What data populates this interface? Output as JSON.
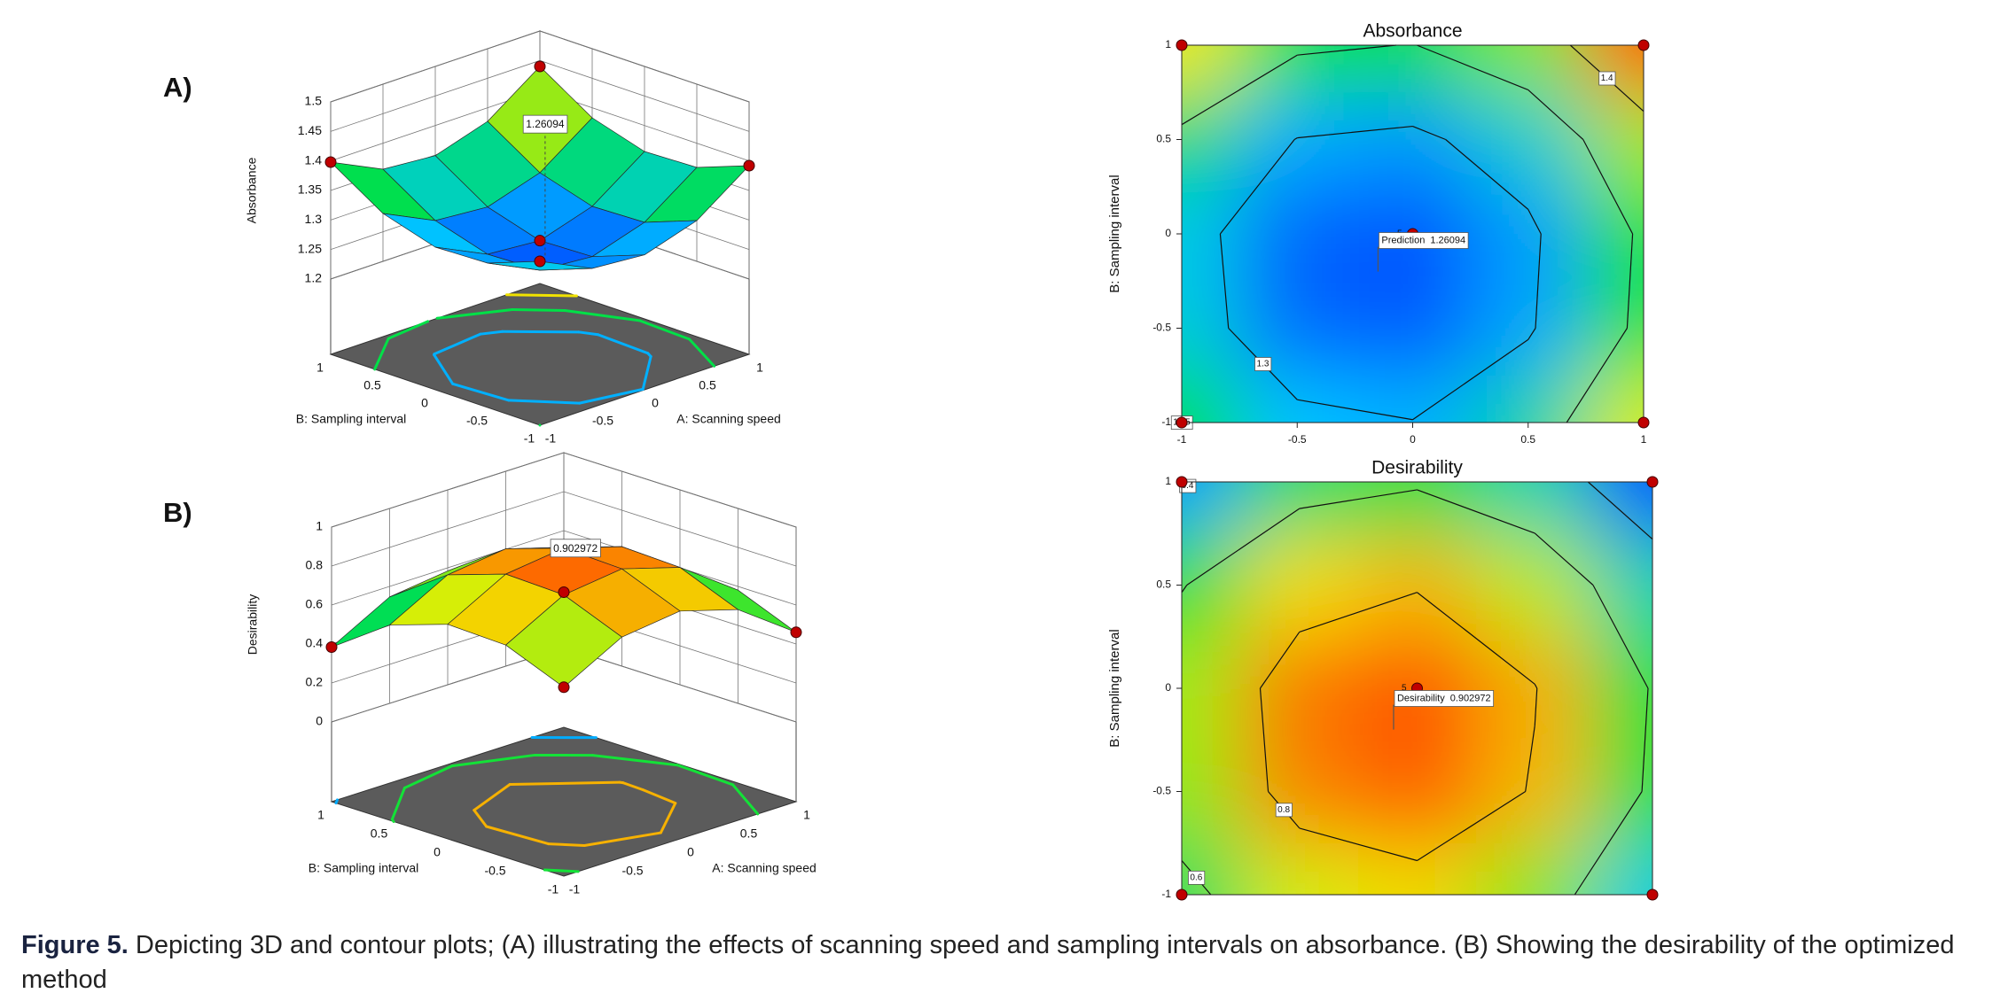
{
  "chart_data": [
    {
      "type": "surface3d",
      "panel_label": "A)",
      "xlabel": "A: Scanning speed",
      "ylabel": "B: Sampling interval",
      "zlabel": "Absorbance",
      "x": [
        -1,
        -0.5,
        0,
        0.5,
        1
      ],
      "y": [
        -1,
        -0.5,
        0,
        0.5,
        1
      ],
      "z": [
        [
          1.35,
          1.308,
          1.301,
          1.329,
          1.392
        ],
        [
          1.317,
          1.275,
          1.268,
          1.296,
          1.359
        ],
        [
          1.314,
          1.272,
          1.265,
          1.293,
          1.356
        ],
        [
          1.341,
          1.299,
          1.292,
          1.32,
          1.383
        ],
        [
          1.398,
          1.356,
          1.349,
          1.377,
          1.44
        ]
      ],
      "xlim": [
        -1,
        1
      ],
      "ylim": [
        -1,
        1
      ],
      "zlim": [
        1.2,
        1.5
      ],
      "xticks": [
        -1,
        -0.5,
        0,
        0.5,
        1
      ],
      "yticks": [
        -1,
        -0.5,
        0,
        0.5,
        1
      ],
      "zticks": [
        1.2,
        1.25,
        1.3,
        1.35,
        1.4,
        1.45,
        1.5
      ],
      "contour_levels": [
        1.3,
        1.35,
        1.4
      ],
      "annotation": {
        "value": 1.26094,
        "x": -0.15,
        "y": -0.2
      },
      "design_points": {
        "x": [
          -1,
          1,
          -1,
          1,
          0
        ],
        "y": [
          1,
          1,
          -1,
          -1,
          0
        ]
      }
    },
    {
      "type": "contour",
      "title": "Absorbance",
      "ylabel": "B: Sampling interval",
      "x": [
        -1,
        -0.5,
        0,
        0.5,
        1
      ],
      "y": [
        -1,
        -0.5,
        0,
        0.5,
        1
      ],
      "z": [
        [
          1.35,
          1.308,
          1.301,
          1.329,
          1.392
        ],
        [
          1.317,
          1.275,
          1.268,
          1.296,
          1.359
        ],
        [
          1.314,
          1.272,
          1.265,
          1.293,
          1.356
        ],
        [
          1.341,
          1.299,
          1.292,
          1.32,
          1.383
        ],
        [
          1.398,
          1.356,
          1.349,
          1.377,
          1.44
        ]
      ],
      "xlim": [
        -1,
        1
      ],
      "ylim": [
        -1,
        1
      ],
      "xticks": [
        -1,
        -0.5,
        0,
        0.5,
        1
      ],
      "yticks": [
        -1,
        -0.5,
        0,
        0.5,
        1
      ],
      "contour_levels": [
        1.3,
        1.35,
        1.4
      ],
      "prediction": {
        "label": "Prediction",
        "value": 1.26094,
        "x": -0.15,
        "y": -0.2
      },
      "design_points": {
        "x": [
          -1,
          1,
          -1,
          1,
          0
        ],
        "y": [
          1,
          1,
          -1,
          -1,
          0
        ]
      },
      "center_label": "5"
    },
    {
      "type": "surface3d",
      "panel_label": "B)",
      "xlabel": "A: Scanning speed",
      "ylabel": "B: Sampling interval",
      "zlabel": "Desirability",
      "x": [
        -1,
        -0.5,
        0,
        0.5,
        1
      ],
      "y": [
        -1,
        -0.5,
        0,
        0.5,
        1
      ],
      "z": [
        [
          0.56,
          0.722,
          0.76,
          0.672,
          0.46
        ],
        [
          0.681,
          0.843,
          0.881,
          0.793,
          0.581
        ],
        [
          0.692,
          0.854,
          0.892,
          0.804,
          0.592
        ],
        [
          0.593,
          0.755,
          0.793,
          0.705,
          0.493
        ],
        [
          0.384,
          0.546,
          0.584,
          0.496,
          0.284
        ]
      ],
      "xlim": [
        -1,
        1
      ],
      "ylim": [
        -1,
        1
      ],
      "zlim": [
        0,
        1
      ],
      "xticks": [
        -1,
        -0.5,
        0,
        0.5,
        1
      ],
      "yticks": [
        -1,
        -0.5,
        0,
        0.5,
        1
      ],
      "zticks": [
        0,
        0.2,
        0.4,
        0.6,
        0.8,
        1
      ],
      "contour_levels": [
        0.4,
        0.6,
        0.8
      ],
      "annotation": {
        "value": 0.902972,
        "x": -0.1,
        "y": -0.2
      },
      "design_points": {
        "x": [
          -1,
          1,
          -1,
          1,
          0
        ],
        "y": [
          1,
          1,
          -1,
          -1,
          0
        ]
      }
    },
    {
      "type": "contour",
      "title": "Desirability",
      "ylabel": "B: Sampling interval",
      "x": [
        -1,
        -0.5,
        0,
        0.5,
        1
      ],
      "y": [
        -1,
        -0.5,
        0,
        0.5,
        1
      ],
      "z": [
        [
          0.56,
          0.722,
          0.76,
          0.672,
          0.46
        ],
        [
          0.681,
          0.843,
          0.881,
          0.793,
          0.581
        ],
        [
          0.692,
          0.854,
          0.892,
          0.804,
          0.592
        ],
        [
          0.593,
          0.755,
          0.793,
          0.705,
          0.493
        ],
        [
          0.384,
          0.546,
          0.584,
          0.496,
          0.284
        ]
      ],
      "xlim": [
        -1,
        1
      ],
      "ylim": [
        -1,
        1
      ],
      "yticks": [
        -1,
        -0.5,
        0,
        0.5,
        1
      ],
      "contour_levels": [
        0.4,
        0.6,
        0.8
      ],
      "prediction": {
        "label": "Desirability",
        "value": 0.902972,
        "x": -0.1,
        "y": -0.2
      },
      "design_points": {
        "x": [
          -1,
          1,
          -1,
          1,
          0
        ],
        "y": [
          1,
          1,
          -1,
          -1,
          0
        ]
      },
      "center_label": "5"
    }
  ],
  "caption": {
    "label": "Figure 5.",
    "text": "Depicting 3D and contour plots; (A) illustrating the effects of scanning speed and sampling intervals on absorbance. (B) Showing the desirability of the optimized method"
  }
}
